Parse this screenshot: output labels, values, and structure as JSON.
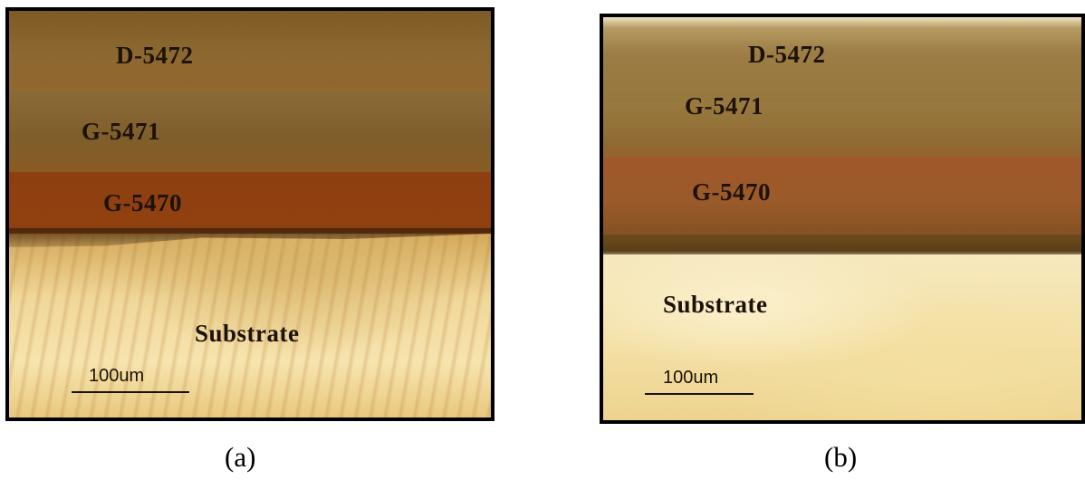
{
  "panels": [
    {
      "layers": [
        "D-5472",
        "G-5471",
        "G-5470"
      ],
      "substrate_label": "Substrate",
      "scale_label": "100um",
      "caption": "(a)"
    },
    {
      "layers": [
        "D-5472",
        "G-5471",
        "G-5470"
      ],
      "substrate_label": "Substrate",
      "scale_label": "100um",
      "caption": "(b)"
    }
  ]
}
